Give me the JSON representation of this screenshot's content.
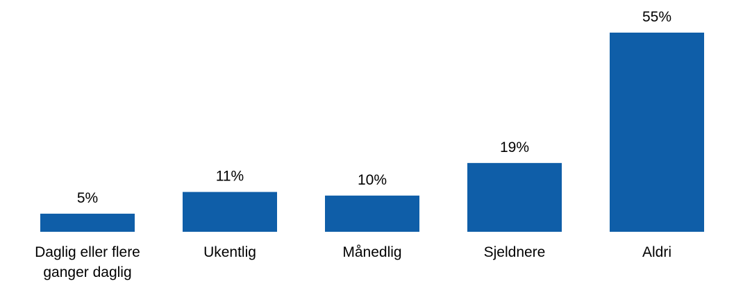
{
  "chart_data": {
    "type": "bar",
    "title": "",
    "xlabel": "",
    "ylabel": "",
    "categories": [
      [
        "Daglig eller flere",
        "ganger daglig"
      ],
      [
        "Ukentlig"
      ],
      [
        "Månedlig"
      ],
      [
        "Sjeldnere"
      ],
      [
        "Aldri"
      ]
    ],
    "values": [
      5,
      11,
      10,
      19,
      55
    ],
    "value_labels": [
      "5%",
      "11%",
      "10%",
      "19%",
      "55%"
    ],
    "ylim": [
      0,
      55
    ],
    "grid": false,
    "legend": "none",
    "bar_color": "#0f5ea8"
  }
}
